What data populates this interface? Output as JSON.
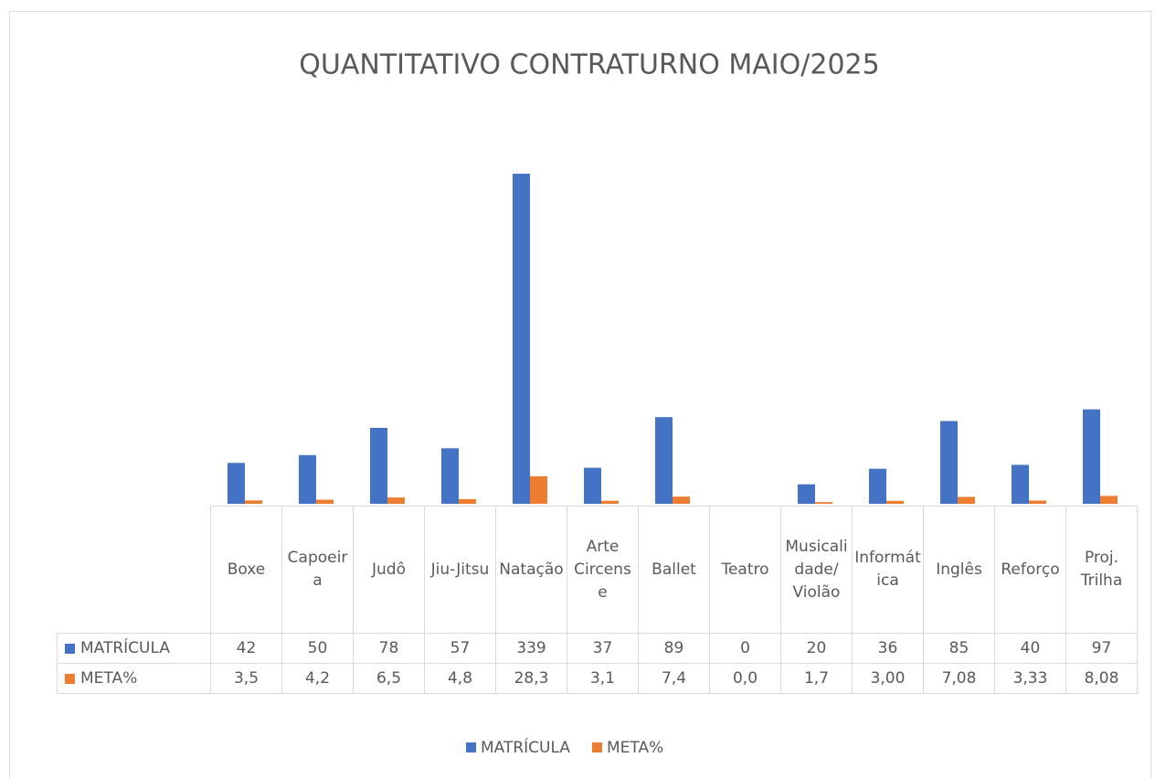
{
  "chart_data": {
    "type": "bar",
    "title": "QUANTITATIVO CONTRATURNO MAIO/2025",
    "categories": [
      "Boxe",
      "Capoeira",
      "Judô",
      "Jiu-Jitsu",
      "Natação",
      "Arte Circense",
      "Ballet",
      "Teatro",
      "Musicalidade/ Violão",
      "Informática",
      "Inglês",
      "Reforço",
      "Proj. Trilha"
    ],
    "series": [
      {
        "name": "MATRÍCULA",
        "color": "#4472c4",
        "values": [
          42,
          50,
          78,
          57,
          339,
          37,
          89,
          0,
          20,
          36,
          85,
          40,
          97
        ]
      },
      {
        "name": "META%",
        "color": "#ed7d31",
        "values": [
          3.5,
          4.2,
          6.5,
          4.8,
          28.3,
          3.1,
          7.4,
          0.0,
          1.7,
          3.0,
          7.08,
          3.33,
          8.08
        ],
        "value_labels": [
          "3,5",
          "4,2",
          "6,5",
          "4,8",
          "28,3",
          "3,1",
          "7,4",
          "0,0",
          "1,7",
          "3,00",
          "7,08",
          "3,33",
          "8,08"
        ]
      }
    ],
    "legend": "bottom"
  }
}
